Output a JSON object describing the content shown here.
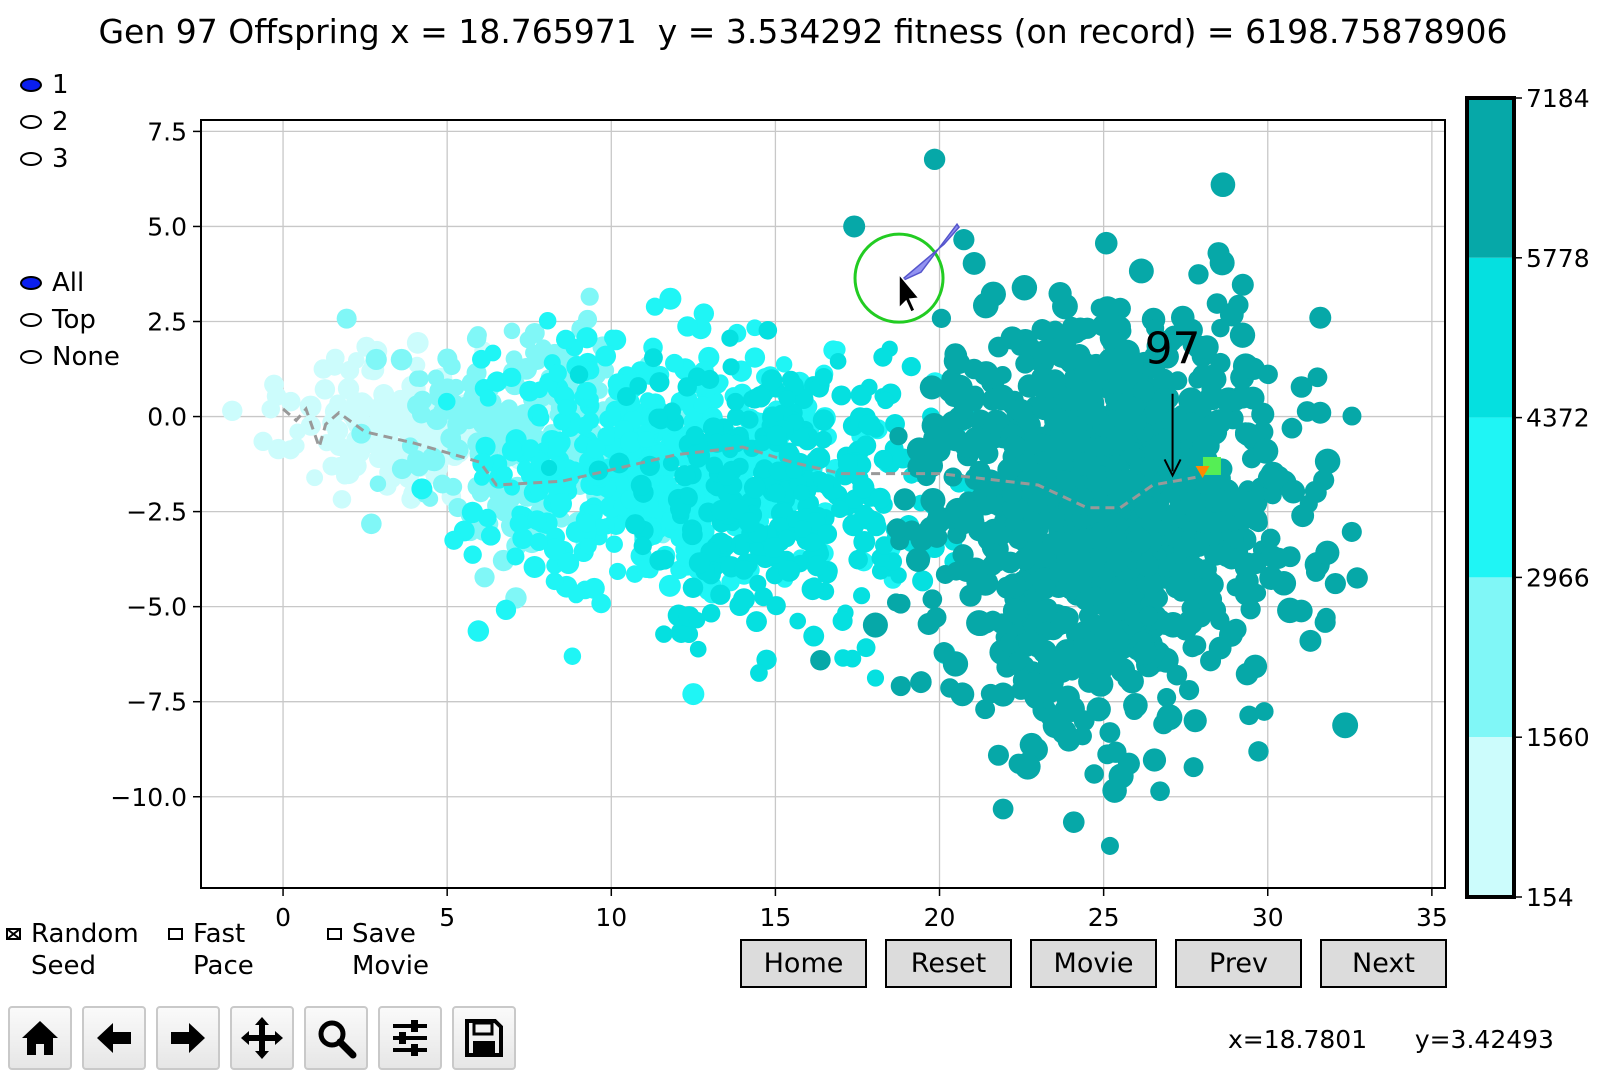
{
  "title": "Gen 97 Offspring x = 18.765971  y = 3.534292 fitness (on record) = 6198.75878906",
  "run_selector": {
    "options": [
      "1",
      "2",
      "3"
    ],
    "selected": "1"
  },
  "show_selector": {
    "options": [
      "All",
      "Top",
      "None"
    ],
    "selected": "All"
  },
  "checkboxes": [
    {
      "label": "Random\nSeed",
      "checked": true
    },
    {
      "label": "Fast\nPace",
      "checked": false
    },
    {
      "label": "Save\nMovie",
      "checked": false
    }
  ],
  "buttons": [
    "Home",
    "Reset",
    "Movie",
    "Prev",
    "Next"
  ],
  "toolbar": [
    "home-icon",
    "back-arrow-icon",
    "forward-arrow-icon",
    "pan-move-icon",
    "zoom-magnifier-icon",
    "configure-subplots-icon",
    "save-disk-icon"
  ],
  "cursor_readout": {
    "x": "x=18.7801",
    "y": "y=3.42493"
  },
  "chart_data": {
    "type": "scatter",
    "title": "",
    "xlabel": "",
    "ylabel": "",
    "xlim": [
      -2.5,
      35.4
    ],
    "ylim": [
      -12.4,
      7.8
    ],
    "xticks": [
      "0",
      "5",
      "10",
      "15",
      "20",
      "25",
      "30",
      "35"
    ],
    "yticks": [
      "7.5",
      "5.0",
      "2.5",
      "0.0",
      "−2.5",
      "−5.0",
      "−7.5",
      "−10.0"
    ],
    "grid": true,
    "generation_label": "97",
    "highlighted_offspring": {
      "x": 18.765971,
      "y": 3.534292,
      "fitness": 6198.75878906
    },
    "clusters": [
      {
        "fitness_band": [
          154,
          1560
        ],
        "color": "#ccfcfc",
        "center": [
          3.5,
          -0.3
        ],
        "spread": [
          1.6,
          0.9
        ]
      },
      {
        "fitness_band": [
          1560,
          2966
        ],
        "color": "#80f7f7",
        "center": [
          7.2,
          -0.6
        ],
        "spread": [
          2.0,
          1.3
        ]
      },
      {
        "fitness_band": [
          2966,
          4372
        ],
        "color": "#1ff5f5",
        "center": [
          11.5,
          -1.3
        ],
        "spread": [
          2.6,
          1.5
        ]
      },
      {
        "fitness_band": [
          4372,
          5778
        ],
        "color": "#05e0e0",
        "center": [
          15.3,
          -2.1
        ],
        "spread": [
          2.4,
          1.9
        ]
      },
      {
        "fitness_band": [
          5778,
          7184
        ],
        "color": "#06a8a8",
        "center": [
          25.0,
          -2.5
        ],
        "spread": [
          2.6,
          2.6
        ]
      }
    ],
    "path": [
      [
        0.0,
        0.2
      ],
      [
        0.4,
        -0.1
      ],
      [
        0.7,
        0.2
      ],
      [
        0.9,
        -0.3
      ],
      [
        1.1,
        -0.8
      ],
      [
        1.3,
        -0.2
      ],
      [
        1.7,
        0.1
      ],
      [
        2.5,
        -0.4
      ],
      [
        4.0,
        -0.7
      ],
      [
        6.0,
        -1.2
      ],
      [
        6.5,
        -1.8
      ],
      [
        8.5,
        -1.7
      ],
      [
        10.0,
        -1.4
      ],
      [
        12.0,
        -1.0
      ],
      [
        14.0,
        -0.8
      ],
      [
        15.5,
        -1.2
      ],
      [
        17.0,
        -1.5
      ],
      [
        20.0,
        -1.5
      ],
      [
        23.0,
        -1.8
      ],
      [
        24.5,
        -2.4
      ],
      [
        25.5,
        -2.4
      ],
      [
        26.5,
        -1.8
      ],
      [
        27.8,
        -1.6
      ]
    ],
    "best_point": {
      "x": 28.3,
      "y": -1.3,
      "color": "#55ee55"
    },
    "colorbar": {
      "ticks": [
        "7184",
        "5778",
        "4372",
        "2966",
        "1560",
        "154"
      ],
      "bands": [
        "#06a8a8",
        "#05e0e0",
        "#1ff5f5",
        "#80f7f7",
        "#ccfcfc"
      ]
    }
  }
}
